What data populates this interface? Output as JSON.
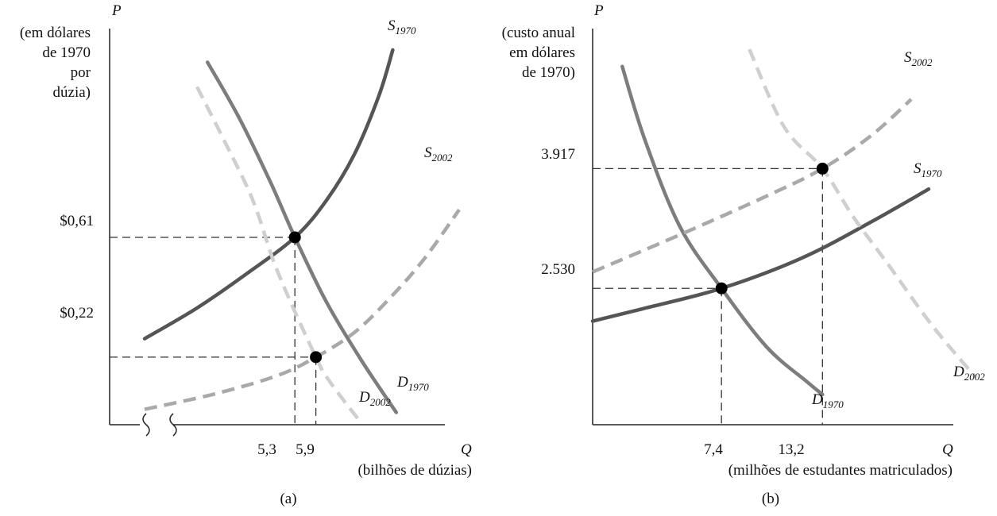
{
  "chart_data": [
    {
      "type": "line",
      "panel_label": "(a)",
      "y_axis_symbol": "P",
      "x_axis_symbol": "Q",
      "ylabel_lines": [
        "(em dólares",
        "de 1970",
        "por",
        "dúzia)"
      ],
      "xlabel": "(bilhões de dúzias)",
      "y_ticks": [
        "$0,61",
        "$0,22"
      ],
      "x_ticks": [
        "5,3",
        "5,9"
      ],
      "series": [
        {
          "name": "S",
          "sub": "1970",
          "style": "solid-dark",
          "points": [
            [
              1.0,
              0.28
            ],
            [
              2.5,
              0.38
            ],
            [
              3.9,
              0.49
            ],
            [
              5.3,
              0.61
            ],
            [
              6.2,
              0.73
            ],
            [
              7.0,
              0.88
            ],
            [
              7.7,
              1.07
            ],
            [
              8.1,
              1.22
            ]
          ]
        },
        {
          "name": "D",
          "sub": "1970",
          "style": "solid-mid",
          "points": [
            [
              2.8,
              1.18
            ],
            [
              3.7,
              1.0
            ],
            [
              4.6,
              0.79
            ],
            [
              5.3,
              0.61
            ],
            [
              6.2,
              0.4
            ],
            [
              7.2,
              0.21
            ],
            [
              8.2,
              0.04
            ]
          ]
        },
        {
          "name": "S",
          "sub": "2002",
          "style": "dash-mid",
          "points": [
            [
              1.0,
              0.05
            ],
            [
              3.0,
              0.1
            ],
            [
              4.8,
              0.16
            ],
            [
              5.9,
              0.22
            ],
            [
              7.0,
              0.3
            ],
            [
              8.0,
              0.41
            ],
            [
              9.0,
              0.54
            ],
            [
              10.0,
              0.7
            ]
          ]
        },
        {
          "name": "D",
          "sub": "2002",
          "style": "dash-light",
          "points": [
            [
              2.5,
              1.1
            ],
            [
              3.3,
              0.92
            ],
            [
              4.1,
              0.73
            ],
            [
              4.8,
              0.5
            ],
            [
              5.9,
              0.22
            ],
            [
              6.3,
              0.14
            ],
            [
              7.1,
              0.02
            ]
          ]
        }
      ],
      "equilibria": [
        {
          "label": "1970",
          "q": 5.3,
          "p": 0.61
        },
        {
          "label": "2002",
          "q": 5.9,
          "p": 0.22
        }
      ],
      "axis_break": true
    },
    {
      "type": "line",
      "panel_label": "(b)",
      "y_axis_symbol": "P",
      "x_axis_symbol": "Q",
      "ylabel_lines": [
        "(custo anual",
        "em dólares",
        "de 1970)"
      ],
      "xlabel": "(milhões de estudantes matriculados)",
      "y_ticks": [
        "3.917",
        "2.530"
      ],
      "x_ticks": [
        "7,4",
        "13,2"
      ],
      "series": [
        {
          "name": "S",
          "sub": "1970",
          "style": "solid-dark",
          "points": [
            [
              0,
              2150
            ],
            [
              3,
              2300
            ],
            [
              7.4,
              2530
            ],
            [
              12,
              2880
            ],
            [
              16,
              3300
            ],
            [
              19.3,
              3680
            ]
          ]
        },
        {
          "name": "D",
          "sub": "1970",
          "style": "solid-mid",
          "points": [
            [
              1.7,
              5100
            ],
            [
              3,
              4250
            ],
            [
              5,
              3250
            ],
            [
              7.4,
              2530
            ],
            [
              10,
              1850
            ],
            [
              12.3,
              1450
            ],
            [
              13.2,
              1300
            ]
          ]
        },
        {
          "name": "S",
          "sub": "2002",
          "style": "dash-mid",
          "points": [
            [
              0,
              2720
            ],
            [
              5,
              3150
            ],
            [
              10,
              3600
            ],
            [
              13.2,
              3917
            ],
            [
              16,
              4300
            ],
            [
              18.3,
              4720
            ]
          ]
        },
        {
          "name": "D",
          "sub": "2002",
          "style": "dash-light",
          "points": [
            [
              9,
              5300
            ],
            [
              11,
              4400
            ],
            [
              13.2,
              3917
            ],
            [
              15,
              3350
            ],
            [
              17,
              2800
            ],
            [
              19.5,
              2100
            ],
            [
              22,
              1500
            ]
          ]
        }
      ],
      "equilibria": [
        {
          "label": "1970",
          "q": 7.4,
          "p": 2530
        },
        {
          "label": "2002",
          "q": 13.2,
          "p": 3917
        }
      ],
      "axis_break": false
    }
  ]
}
